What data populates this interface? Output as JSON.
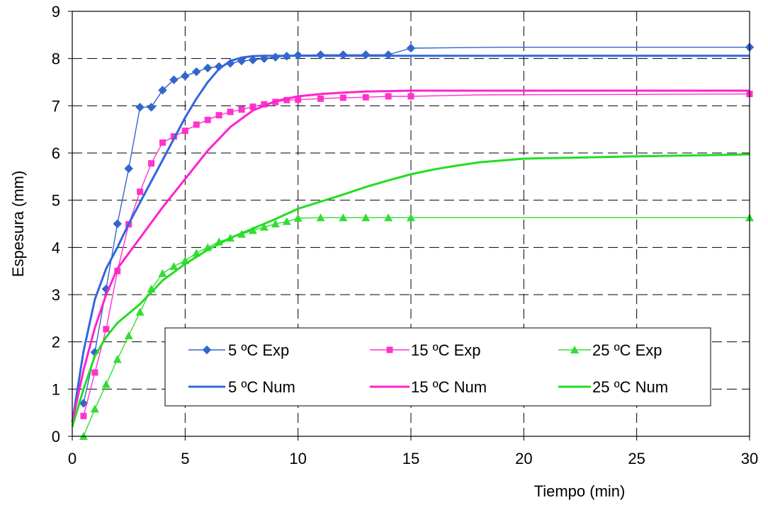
{
  "chart_data": {
    "type": "line",
    "xlabel": "Tiempo (min)",
    "ylabel": "Espesura (mm)",
    "xlim": [
      0,
      30
    ],
    "ylim": [
      0,
      9
    ],
    "xticks": [
      0,
      5,
      10,
      15,
      20,
      25,
      30
    ],
    "yticks": [
      0,
      1,
      2,
      3,
      4,
      5,
      6,
      7,
      8,
      9
    ],
    "grid": "dashed",
    "legend_position": "lower-center",
    "series": [
      {
        "name": "5 ºC Exp",
        "color": "#3366CC",
        "marker": "diamond",
        "line": "thin",
        "x": [
          0.5,
          1,
          1.5,
          2,
          2.5,
          3,
          3.5,
          4,
          4.5,
          5,
          5.5,
          6,
          6.5,
          7,
          7.5,
          8,
          8.5,
          9,
          9.5,
          10,
          11,
          12,
          13,
          14,
          15,
          19,
          30
        ],
        "y": [
          0.7,
          1.78,
          3.12,
          4.5,
          5.67,
          6.97,
          6.97,
          7.33,
          7.55,
          7.63,
          7.72,
          7.8,
          7.83,
          7.9,
          7.95,
          7.97,
          8.0,
          8.03,
          8.05,
          8.07,
          8.08,
          8.08,
          8.08,
          8.08,
          8.22,
          8.24,
          8.24
        ],
        "markers_upto": 15
      },
      {
        "name": "15 ºC Exp",
        "color": "#FF33CC",
        "marker": "square",
        "line": "thin",
        "x": [
          0.5,
          1,
          1.5,
          2,
          2.5,
          3,
          3.5,
          4,
          4.5,
          5,
          5.5,
          6,
          6.5,
          7,
          7.5,
          8,
          8.5,
          9,
          9.5,
          10,
          11,
          12,
          13,
          14,
          15,
          18,
          30
        ],
        "y": [
          0.43,
          1.35,
          2.27,
          3.5,
          4.49,
          5.18,
          5.78,
          6.22,
          6.35,
          6.47,
          6.6,
          6.7,
          6.8,
          6.87,
          6.92,
          6.98,
          7.03,
          7.08,
          7.12,
          7.13,
          7.15,
          7.17,
          7.18,
          7.2,
          7.2,
          7.23,
          7.25
        ],
        "markers_upto": 15
      },
      {
        "name": "25 ºC Exp",
        "color": "#33DD33",
        "marker": "triangle",
        "line": "thin",
        "x": [
          0.5,
          1,
          1.5,
          2,
          2.5,
          3,
          3.5,
          4,
          4.5,
          5,
          5.5,
          6,
          6.5,
          7,
          7.5,
          8,
          8.5,
          9,
          9.5,
          10,
          11,
          12,
          13,
          14,
          15,
          30
        ],
        "y": [
          0.0,
          0.58,
          1.1,
          1.63,
          2.13,
          2.63,
          3.12,
          3.45,
          3.6,
          3.72,
          3.88,
          4.0,
          4.12,
          4.2,
          4.28,
          4.36,
          4.43,
          4.5,
          4.55,
          4.62,
          4.63,
          4.63,
          4.63,
          4.63,
          4.63,
          4.63
        ],
        "markers_upto": 30
      },
      {
        "name": "5 ºC Num",
        "color": "#3366DD",
        "marker": "none",
        "line": "thick",
        "x": [
          0,
          0.5,
          1,
          1.5,
          2,
          2.5,
          3,
          3.5,
          4,
          4.5,
          5,
          5.5,
          6,
          6.5,
          7,
          7.5,
          8,
          8.5,
          9,
          10,
          12,
          15,
          20,
          30
        ],
        "y": [
          0.3,
          1.8,
          2.9,
          3.55,
          4.0,
          4.5,
          4.95,
          5.4,
          5.85,
          6.3,
          6.75,
          7.15,
          7.5,
          7.78,
          7.95,
          8.02,
          8.05,
          8.06,
          8.06,
          8.06,
          8.06,
          8.06,
          8.06,
          8.06
        ]
      },
      {
        "name": "15 ºC Num",
        "color": "#FF22CC",
        "marker": "none",
        "line": "thick",
        "x": [
          0,
          0.5,
          1,
          1.5,
          2,
          3,
          4,
          5,
          6,
          7,
          8,
          9,
          10,
          11,
          12,
          13,
          15,
          20,
          30
        ],
        "y": [
          0.3,
          1.4,
          2.3,
          3.0,
          3.55,
          4.2,
          4.85,
          5.45,
          6.05,
          6.55,
          6.9,
          7.1,
          7.2,
          7.25,
          7.28,
          7.3,
          7.32,
          7.32,
          7.32
        ]
      },
      {
        "name": "25 ºC Num",
        "color": "#22DD22",
        "marker": "none",
        "line": "thick",
        "x": [
          0,
          0.5,
          1,
          1.5,
          2,
          3,
          4,
          5,
          6,
          7,
          8,
          9,
          10,
          11,
          12,
          13,
          14,
          15,
          16,
          17,
          18,
          20,
          22,
          25,
          30
        ],
        "y": [
          0.2,
          1.0,
          1.7,
          2.1,
          2.4,
          2.8,
          3.3,
          3.65,
          3.95,
          4.2,
          4.4,
          4.6,
          4.82,
          4.97,
          5.12,
          5.28,
          5.42,
          5.55,
          5.65,
          5.73,
          5.8,
          5.88,
          5.9,
          5.93,
          5.97
        ]
      }
    ]
  }
}
